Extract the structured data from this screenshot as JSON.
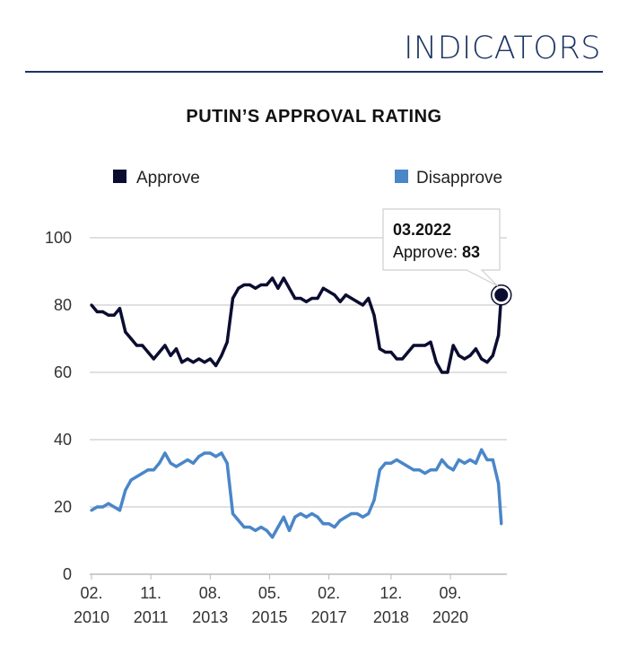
{
  "header": {
    "title": "INDICATORS"
  },
  "chart_data": {
    "type": "line",
    "title": "PUTIN’S APPROVAL RATING",
    "xlabel": "",
    "ylabel": "",
    "ylim": [
      0,
      100
    ],
    "yticks": [
      0,
      20,
      40,
      60,
      80,
      100
    ],
    "xticks": [
      {
        "date": "02.2010",
        "label1": "02.",
        "label2": "2010"
      },
      {
        "date": "11.2011",
        "label1": "11.",
        "label2": "2011"
      },
      {
        "date": "08.2013",
        "label1": "08.",
        "label2": "2013"
      },
      {
        "date": "05.2015",
        "label1": "05.",
        "label2": "2015"
      },
      {
        "date": "02.2017",
        "label1": "02.",
        "label2": "2017"
      },
      {
        "date": "12.2018",
        "label1": "12.",
        "label2": "2018"
      },
      {
        "date": "09.2020",
        "label1": "09.",
        "label2": "2020"
      }
    ],
    "grid": true,
    "legend_position": "top",
    "x": [
      "02.2010",
      "04.2010",
      "06.2010",
      "08.2010",
      "10.2010",
      "12.2010",
      "02.2011",
      "04.2011",
      "06.2011",
      "08.2011",
      "10.2011",
      "12.2011",
      "02.2012",
      "04.2012",
      "06.2012",
      "08.2012",
      "10.2012",
      "12.2012",
      "02.2013",
      "04.2013",
      "06.2013",
      "08.2013",
      "10.2013",
      "12.2013",
      "02.2014",
      "04.2014",
      "06.2014",
      "08.2014",
      "10.2014",
      "12.2014",
      "02.2015",
      "04.2015",
      "06.2015",
      "08.2015",
      "10.2015",
      "12.2015",
      "02.2016",
      "04.2016",
      "06.2016",
      "08.2016",
      "10.2016",
      "12.2016",
      "02.2017",
      "04.2017",
      "06.2017",
      "08.2017",
      "10.2017",
      "12.2017",
      "02.2018",
      "04.2018",
      "06.2018",
      "08.2018",
      "10.2018",
      "12.2018",
      "02.2019",
      "04.2019",
      "06.2019",
      "08.2019",
      "10.2019",
      "12.2019",
      "02.2020",
      "04.2020",
      "06.2020",
      "08.2020",
      "10.2020",
      "12.2020",
      "02.2021",
      "04.2021",
      "06.2021",
      "08.2021",
      "10.2021",
      "12.2021",
      "02.2022",
      "03.2022"
    ],
    "series": [
      {
        "name": "Approve",
        "color": "#0b0d30",
        "values": [
          80,
          78,
          78,
          77,
          77,
          79,
          72,
          70,
          68,
          68,
          66,
          64,
          66,
          68,
          65,
          67,
          63,
          64,
          63,
          64,
          63,
          64,
          62,
          65,
          69,
          82,
          85,
          86,
          86,
          85,
          86,
          86,
          88,
          85,
          88,
          85,
          82,
          82,
          81,
          82,
          82,
          85,
          84,
          83,
          81,
          83,
          82,
          81,
          80,
          82,
          77,
          67,
          66,
          66,
          64,
          64,
          66,
          68,
          68,
          68,
          69,
          63,
          60,
          60,
          68,
          65,
          64,
          65,
          67,
          64,
          63,
          65,
          71,
          83
        ]
      },
      {
        "name": "Disapprove",
        "color": "#4a86c8",
        "values": [
          19,
          20,
          20,
          21,
          20,
          19,
          25,
          28,
          29,
          30,
          31,
          31,
          33,
          36,
          33,
          32,
          33,
          34,
          33,
          35,
          36,
          36,
          35,
          36,
          33,
          18,
          16,
          14,
          14,
          13,
          14,
          13,
          11,
          14,
          17,
          13,
          17,
          18,
          17,
          18,
          17,
          15,
          15,
          14,
          16,
          17,
          18,
          18,
          17,
          18,
          22,
          31,
          33,
          33,
          34,
          33,
          32,
          31,
          31,
          30,
          31,
          31,
          34,
          32,
          31,
          34,
          33,
          34,
          33,
          37,
          34,
          34,
          27,
          15
        ]
      }
    ],
    "tooltip": {
      "date": "03.2022",
      "label": "Approve: ",
      "value": "83"
    }
  }
}
